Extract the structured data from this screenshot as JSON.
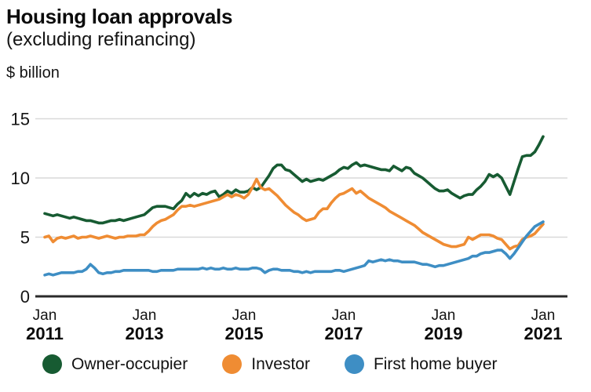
{
  "header": {
    "title": "Housing loan approvals",
    "subtitle": "(excluding refinancing)",
    "unit_label": "$ billion"
  },
  "colors": {
    "owner_occupier": "#175B32",
    "investor": "#EF8C33",
    "first_home_buyer": "#3E8EC4",
    "grid": "#D9D9D9",
    "axis": "#2A2A2A",
    "text": "#141414"
  },
  "legend": [
    {
      "label": "Owner-occupier",
      "color_key": "owner_occupier"
    },
    {
      "label": "Investor",
      "color_key": "investor"
    },
    {
      "label": "First home buyer",
      "color_key": "first_home_buyer"
    }
  ],
  "chart_data": {
    "type": "line",
    "title": "Housing loan approvals",
    "subtitle": "(excluding refinancing)",
    "ylabel": "$ billion",
    "xlabel": "",
    "grid": "horizontal",
    "legend_position": "bottom",
    "ylim": [
      0,
      15
    ],
    "yticks": [
      0,
      5,
      10,
      15
    ],
    "x_interval": "monthly",
    "x_start": "Jan 2011",
    "x_end": "Jan 2021",
    "xticks": [
      {
        "month_index": 0,
        "line1": "Jan",
        "line2": "2011"
      },
      {
        "month_index": 24,
        "line1": "Jan",
        "line2": "2013"
      },
      {
        "month_index": 48,
        "line1": "Jan",
        "line2": "2015"
      },
      {
        "month_index": 72,
        "line1": "Jan",
        "line2": "2017"
      },
      {
        "month_index": 96,
        "line1": "Jan",
        "line2": "2019"
      },
      {
        "month_index": 120,
        "line1": "Jan",
        "line2": "2021"
      }
    ],
    "series": [
      {
        "name": "Owner-occupier",
        "color": "#175B32",
        "values": [
          7.0,
          6.9,
          6.8,
          6.9,
          6.8,
          6.7,
          6.6,
          6.7,
          6.6,
          6.5,
          6.4,
          6.4,
          6.3,
          6.2,
          6.2,
          6.3,
          6.4,
          6.4,
          6.5,
          6.4,
          6.5,
          6.6,
          6.7,
          6.8,
          6.9,
          7.2,
          7.5,
          7.6,
          7.6,
          7.6,
          7.5,
          7.4,
          7.8,
          8.1,
          8.7,
          8.4,
          8.7,
          8.5,
          8.7,
          8.6,
          8.8,
          8.9,
          8.4,
          8.6,
          8.9,
          8.7,
          9.0,
          8.8,
          8.8,
          8.9,
          9.2,
          9.0,
          9.2,
          9.7,
          10.2,
          10.8,
          11.1,
          11.1,
          10.7,
          10.6,
          10.3,
          10.0,
          9.7,
          9.9,
          9.7,
          9.8,
          9.9,
          9.8,
          10.0,
          10.2,
          10.4,
          10.7,
          10.9,
          10.8,
          11.1,
          11.3,
          11.0,
          11.1,
          11.0,
          10.9,
          10.8,
          10.7,
          10.7,
          10.6,
          11.0,
          10.8,
          10.6,
          10.9,
          10.8,
          10.4,
          10.2,
          10.0,
          9.7,
          9.4,
          9.1,
          8.9,
          8.9,
          9.0,
          8.7,
          8.5,
          8.3,
          8.5,
          8.6,
          8.6,
          9.0,
          9.3,
          9.7,
          10.3,
          10.1,
          10.3,
          10.0,
          9.3,
          8.6,
          9.7,
          10.8,
          11.8,
          11.9,
          11.9,
          12.2,
          12.8,
          13.5
        ]
      },
      {
        "name": "Investor",
        "color": "#EF8C33",
        "values": [
          5.0,
          5.1,
          4.6,
          4.9,
          5.0,
          4.9,
          5.0,
          5.1,
          4.9,
          5.0,
          5.0,
          5.1,
          5.0,
          4.9,
          5.0,
          5.1,
          5.0,
          4.9,
          5.0,
          5.0,
          5.1,
          5.1,
          5.1,
          5.2,
          5.2,
          5.5,
          5.9,
          6.2,
          6.4,
          6.5,
          6.7,
          6.9,
          7.3,
          7.6,
          7.6,
          7.7,
          7.6,
          7.7,
          7.8,
          7.9,
          8.0,
          8.1,
          8.2,
          8.4,
          8.6,
          8.4,
          8.6,
          8.5,
          8.3,
          8.6,
          9.2,
          9.9,
          9.2,
          9.0,
          9.1,
          8.8,
          8.5,
          8.1,
          7.7,
          7.4,
          7.1,
          6.9,
          6.6,
          6.4,
          6.5,
          6.6,
          7.1,
          7.4,
          7.4,
          7.9,
          8.3,
          8.6,
          8.7,
          8.9,
          9.1,
          8.7,
          8.9,
          8.6,
          8.3,
          8.1,
          7.9,
          7.7,
          7.5,
          7.2,
          7.0,
          6.8,
          6.6,
          6.4,
          6.2,
          6.0,
          5.7,
          5.4,
          5.2,
          5.0,
          4.8,
          4.6,
          4.4,
          4.3,
          4.2,
          4.2,
          4.3,
          4.4,
          5.0,
          4.8,
          5.0,
          5.2,
          5.2,
          5.2,
          5.1,
          4.9,
          4.8,
          4.4,
          4.0,
          4.2,
          4.3,
          4.8,
          5.0,
          5.1,
          5.3,
          5.7,
          6.1
        ]
      },
      {
        "name": "First home buyer",
        "color": "#3E8EC4",
        "values": [
          1.8,
          1.9,
          1.8,
          1.9,
          2.0,
          2.0,
          2.0,
          2.0,
          2.1,
          2.1,
          2.3,
          2.7,
          2.4,
          2.0,
          1.9,
          2.0,
          2.0,
          2.1,
          2.1,
          2.2,
          2.2,
          2.2,
          2.2,
          2.2,
          2.2,
          2.2,
          2.1,
          2.1,
          2.2,
          2.2,
          2.2,
          2.2,
          2.3,
          2.3,
          2.3,
          2.3,
          2.3,
          2.3,
          2.4,
          2.3,
          2.4,
          2.3,
          2.3,
          2.4,
          2.3,
          2.3,
          2.4,
          2.3,
          2.3,
          2.3,
          2.4,
          2.4,
          2.3,
          2.0,
          2.2,
          2.3,
          2.3,
          2.2,
          2.2,
          2.2,
          2.1,
          2.1,
          2.0,
          2.1,
          2.0,
          2.1,
          2.1,
          2.1,
          2.1,
          2.1,
          2.2,
          2.2,
          2.1,
          2.2,
          2.3,
          2.4,
          2.5,
          2.6,
          3.0,
          2.9,
          3.0,
          3.1,
          3.0,
          3.1,
          3.0,
          3.0,
          2.9,
          2.9,
          2.9,
          2.9,
          2.8,
          2.7,
          2.7,
          2.6,
          2.5,
          2.6,
          2.6,
          2.7,
          2.8,
          2.9,
          3.0,
          3.1,
          3.2,
          3.4,
          3.4,
          3.6,
          3.7,
          3.7,
          3.8,
          3.9,
          3.9,
          3.6,
          3.2,
          3.6,
          4.1,
          4.6,
          5.1,
          5.5,
          5.9,
          6.1,
          6.3
        ]
      }
    ]
  }
}
